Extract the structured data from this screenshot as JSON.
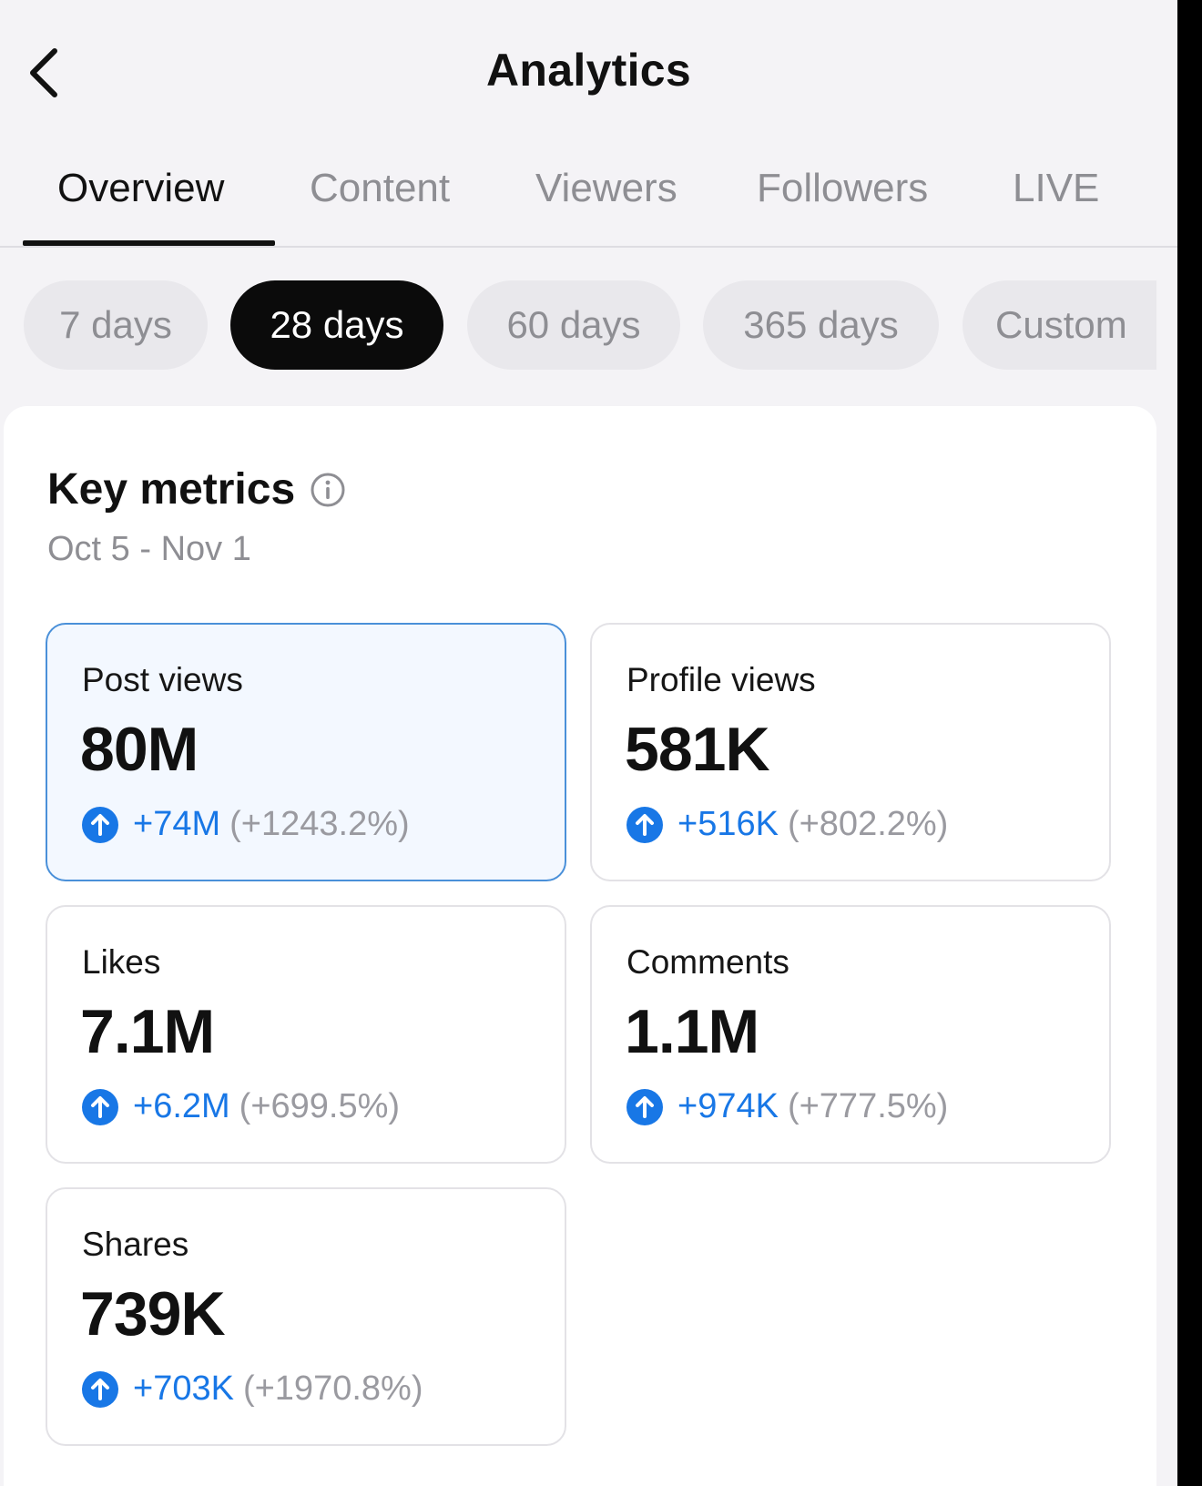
{
  "header": {
    "title": "Analytics",
    "back_icon": "chevron-left-icon"
  },
  "tabs": [
    {
      "label": "Overview",
      "active": true
    },
    {
      "label": "Content",
      "active": false
    },
    {
      "label": "Viewers",
      "active": false
    },
    {
      "label": "Followers",
      "active": false
    },
    {
      "label": "LIVE",
      "active": false
    }
  ],
  "periods": [
    {
      "label": "7 days",
      "active": false
    },
    {
      "label": "28 days",
      "active": true
    },
    {
      "label": "60 days",
      "active": false
    },
    {
      "label": "365 days",
      "active": false
    },
    {
      "label": "Custom",
      "active": false
    }
  ],
  "key_metrics": {
    "title": "Key metrics",
    "info_icon": "info-circle-icon",
    "date_range": "Oct 5 - Nov 1",
    "items": [
      {
        "label": "Post views",
        "value": "80M",
        "delta": "+74M",
        "percent": "(+1243.2%)",
        "selected": true
      },
      {
        "label": "Profile views",
        "value": "581K",
        "delta": "+516K",
        "percent": "(+802.2%)",
        "selected": false
      },
      {
        "label": "Likes",
        "value": "7.1M",
        "delta": "+6.2M",
        "percent": "(+699.5%)",
        "selected": false
      },
      {
        "label": "Comments",
        "value": "1.1M",
        "delta": "+974K",
        "percent": "(+777.5%)",
        "selected": false
      },
      {
        "label": "Shares",
        "value": "739K",
        "delta": "+703K",
        "percent": "(+1970.8%)",
        "selected": false
      }
    ]
  },
  "colors": {
    "accent": "#1877e6",
    "selected_border": "#4a90d9",
    "active_chip": "#0b0b0b",
    "background": "#f4f3f6"
  }
}
